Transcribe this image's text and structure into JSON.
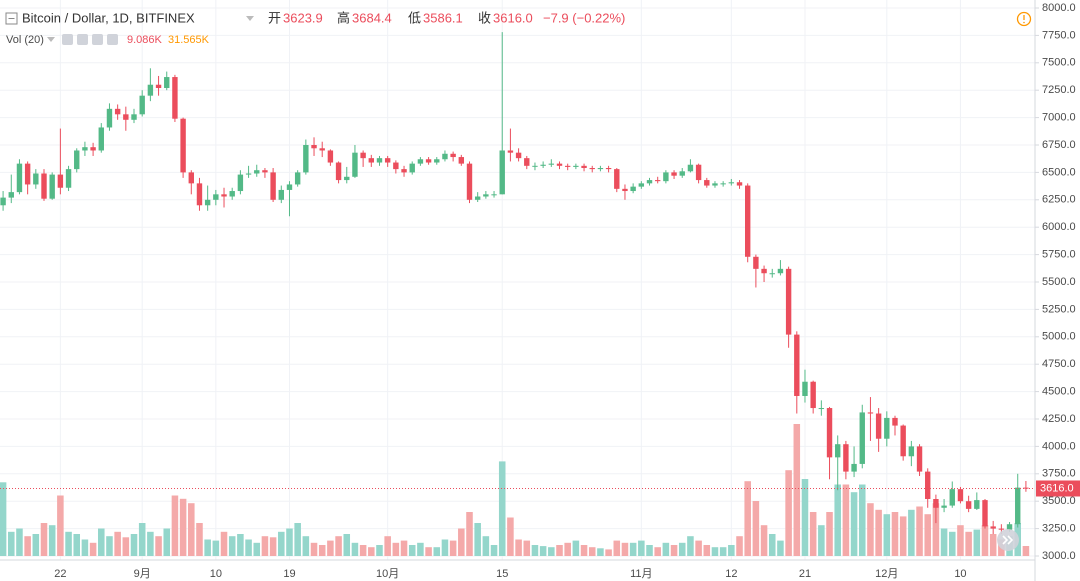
{
  "chart_data": {
    "type": "candlestick",
    "title": "Bitcoin / Dollar, 1D, BITFINEX",
    "ohlc_header": {
      "open_label": "开",
      "open": "3623.9",
      "high_label": "高",
      "high": "3684.4",
      "low_label": "低",
      "low": "3586.1",
      "close_label": "收",
      "close": "3616.0",
      "change": "−7.9 (−0.22%)"
    },
    "volume_header": {
      "label": "Vol (20)",
      "value": "9.086K",
      "ma": "31.565K"
    },
    "categories": [
      null,
      null,
      null,
      null,
      null,
      null,
      null,
      "22",
      null,
      null,
      null,
      null,
      null,
      null,
      null,
      null,
      null,
      "9月",
      null,
      null,
      null,
      null,
      null,
      null,
      null,
      null,
      "10",
      null,
      null,
      null,
      null,
      null,
      null,
      null,
      null,
      "19",
      null,
      null,
      null,
      null,
      null,
      null,
      null,
      null,
      null,
      null,
      null,
      "10月",
      null,
      null,
      null,
      null,
      null,
      null,
      null,
      null,
      null,
      null,
      null,
      null,
      null,
      "15",
      null,
      null,
      null,
      null,
      null,
      null,
      null,
      null,
      null,
      null,
      null,
      null,
      null,
      null,
      null,
      null,
      "11月",
      null,
      null,
      null,
      null,
      null,
      null,
      null,
      null,
      null,
      null,
      "12",
      null,
      null,
      null,
      null,
      null,
      null,
      null,
      null,
      "21",
      null,
      null,
      null,
      null,
      null,
      null,
      null,
      null,
      null,
      "12月",
      null,
      null,
      null,
      null,
      null,
      null,
      null,
      null,
      "10",
      null,
      null,
      null,
      null,
      null,
      null,
      null,
      null
    ],
    "open": [
      6200,
      6270,
      6320,
      6580,
      6390,
      6490,
      6260,
      6480,
      6360,
      6530,
      6700,
      6730,
      6700,
      6910,
      7080,
      7030,
      6980,
      7030,
      7200,
      7300,
      7270,
      7370,
      6990,
      6500,
      6400,
      6200,
      6250,
      6300,
      6280,
      6330,
      6480,
      6490,
      6520,
      6500,
      6250,
      6340,
      6390,
      6500,
      6750,
      6720,
      6700,
      6590,
      6430,
      6460,
      6680,
      6630,
      6590,
      6630,
      6590,
      6530,
      6500,
      6580,
      6620,
      6590,
      6620,
      6670,
      6640,
      6580,
      6250,
      6280,
      6300,
      6300,
      6700,
      6680,
      6630,
      6560,
      6560,
      6570,
      6580,
      6560,
      6550,
      6560,
      6540,
      6530,
      6540,
      6530,
      6350,
      6330,
      6370,
      6400,
      6430,
      6420,
      6500,
      6470,
      6510,
      6570,
      6430,
      6380,
      6400,
      6400,
      6410,
      6380,
      5730,
      5620,
      5580,
      5580,
      5620,
      5020,
      4460,
      4590,
      4350,
      4350,
      3900,
      4020,
      3770,
      3840,
      4310,
      4300,
      4070,
      4260,
      4190,
      3910,
      4000,
      3770,
      3520,
      3440,
      3460,
      3610,
      3500,
      3430,
      3510,
      3270,
      3250,
      3240,
      3290,
      3623.9
    ],
    "high": [
      6330,
      6480,
      6620,
      6600,
      6530,
      6530,
      6500,
      6900,
      6560,
      6720,
      6780,
      6770,
      6950,
      7130,
      7120,
      7100,
      7080,
      7250,
      7450,
      7380,
      7420,
      7390,
      7000,
      6520,
      6450,
      6380,
      6340,
      6360,
      6360,
      6520,
      6560,
      6570,
      6540,
      6540,
      6380,
      6420,
      6520,
      6800,
      6820,
      6780,
      6710,
      6600,
      6550,
      6750,
      6700,
      6660,
      6650,
      6650,
      6610,
      6560,
      6600,
      6640,
      6640,
      6640,
      6700,
      6690,
      6660,
      6600,
      6320,
      6330,
      6330,
      7780,
      6900,
      6720,
      6650,
      6590,
      6600,
      6620,
      6600,
      6580,
      6580,
      6580,
      6560,
      6560,
      6560,
      6540,
      6390,
      6400,
      6420,
      6450,
      6460,
      6520,
      6520,
      6540,
      6620,
      6580,
      6450,
      6420,
      6420,
      6440,
      6430,
      6400,
      5750,
      5650,
      5620,
      5700,
      5640,
      5050,
      4700,
      4600,
      4420,
      4360,
      4100,
      4050,
      4000,
      4380,
      4450,
      4350,
      4320,
      4280,
      4200,
      4050,
      4020,
      3800,
      3560,
      3520,
      3680,
      3630,
      3550,
      3580,
      3520,
      3320,
      3290,
      3310,
      3750,
      3684.4
    ],
    "low": [
      6150,
      6220,
      6300,
      6300,
      6350,
      6240,
      6250,
      6300,
      6330,
      6500,
      6650,
      6650,
      6680,
      6880,
      6980,
      6880,
      6950,
      7010,
      7150,
      7200,
      7250,
      6960,
      6450,
      6300,
      6150,
      6150,
      6200,
      6180,
      6250,
      6300,
      6450,
      6460,
      6450,
      6230,
      6220,
      6100,
      6370,
      6480,
      6650,
      6640,
      6560,
      6400,
      6400,
      6450,
      6550,
      6550,
      6560,
      6550,
      6490,
      6460,
      6480,
      6560,
      6570,
      6570,
      6600,
      6600,
      6560,
      6220,
      6230,
      6260,
      6270,
      6300,
      6600,
      6600,
      6530,
      6520,
      6540,
      6550,
      6530,
      6520,
      6530,
      6510,
      6500,
      6510,
      6500,
      6320,
      6250,
      6310,
      6350,
      6380,
      6400,
      6400,
      6440,
      6450,
      6500,
      6400,
      6360,
      6360,
      6370,
      6380,
      6350,
      5680,
      5450,
      5500,
      5540,
      5560,
      4900,
      4300,
      4400,
      4300,
      4280,
      3700,
      3600,
      3700,
      3720,
      3800,
      4050,
      3950,
      4000,
      4100,
      3870,
      3820,
      3730,
      3440,
      3300,
      3400,
      3440,
      3480,
      3400,
      3420,
      3250,
      3200,
      3200,
      3220,
      3260,
      3586.1
    ],
    "close": [
      6270,
      6320,
      6580,
      6390,
      6490,
      6260,
      6480,
      6360,
      6530,
      6700,
      6730,
      6700,
      6910,
      7080,
      7030,
      6980,
      7030,
      7200,
      7300,
      7270,
      7370,
      6990,
      6500,
      6400,
      6200,
      6250,
      6300,
      6280,
      6330,
      6480,
      6490,
      6520,
      6500,
      6250,
      6340,
      6390,
      6500,
      6750,
      6720,
      6700,
      6590,
      6430,
      6460,
      6680,
      6630,
      6590,
      6630,
      6590,
      6530,
      6500,
      6580,
      6620,
      6590,
      6620,
      6670,
      6640,
      6580,
      6250,
      6280,
      6300,
      6300,
      6700,
      6680,
      6630,
      6560,
      6560,
      6570,
      6580,
      6560,
      6550,
      6560,
      6540,
      6530,
      6540,
      6530,
      6350,
      6330,
      6370,
      6400,
      6430,
      6420,
      6500,
      6470,
      6510,
      6570,
      6430,
      6380,
      6400,
      6400,
      6410,
      6380,
      5730,
      5620,
      5580,
      5580,
      5620,
      5020,
      4460,
      4590,
      4350,
      4350,
      3900,
      4020,
      3770,
      3840,
      4310,
      4300,
      4070,
      4260,
      4190,
      3910,
      4000,
      3770,
      3520,
      3440,
      3460,
      3610,
      3500,
      3430,
      3510,
      3270,
      3250,
      3240,
      3290,
      3623.9,
      3616.0
    ],
    "volume": {
      "axis": "y2",
      "values": [
        67,
        22,
        25,
        18,
        20,
        30,
        28,
        55,
        22,
        20,
        15,
        12,
        25,
        18,
        22,
        17,
        20,
        30,
        22,
        18,
        25,
        55,
        52,
        48,
        30,
        15,
        14,
        22,
        18,
        20,
        15,
        12,
        18,
        17,
        22,
        25,
        30,
        18,
        12,
        10,
        14,
        18,
        20,
        12,
        10,
        8,
        10,
        18,
        12,
        14,
        10,
        12,
        8,
        8,
        15,
        14,
        25,
        40,
        30,
        18,
        10,
        86,
        35,
        15,
        14,
        10,
        9,
        8,
        10,
        12,
        14,
        10,
        8,
        7,
        6,
        14,
        12,
        12,
        14,
        10,
        8,
        12,
        10,
        12,
        18,
        14,
        10,
        8,
        8,
        10,
        18,
        68,
        50,
        28,
        20,
        14,
        78,
        120,
        70,
        40,
        28,
        40,
        65,
        65,
        58,
        65,
        48,
        42,
        38,
        40,
        36,
        42,
        45,
        38,
        48,
        25,
        22,
        28,
        22,
        24,
        28,
        20,
        15,
        18,
        30,
        9.086
      ]
    },
    "last_price": {
      "value": 3616.0,
      "label": "3616.0"
    },
    "ylim": [
      3000,
      8000
    ],
    "y2lim": [
      0,
      160
    ],
    "yticks": [
      {
        "value": 3000,
        "label": "3000.0"
      },
      {
        "value": 3250,
        "label": "3250.0"
      },
      {
        "value": 3500,
        "label": "3500.0"
      },
      {
        "value": 3750,
        "label": "3750.0"
      },
      {
        "value": 4000,
        "label": "4000.0"
      },
      {
        "value": 4250,
        "label": "4250.0"
      },
      {
        "value": 4500,
        "label": "4500.0"
      },
      {
        "value": 4750,
        "label": "4750.0"
      },
      {
        "value": 5000,
        "label": "5000.0"
      },
      {
        "value": 5250,
        "label": "5250.0"
      },
      {
        "value": 5500,
        "label": "5500.0"
      },
      {
        "value": 5750,
        "label": "5750.0"
      },
      {
        "value": 6000,
        "label": "6000.0"
      },
      {
        "value": 6250,
        "label": "6250.0"
      },
      {
        "value": 6500,
        "label": "6500.0"
      },
      {
        "value": 6750,
        "label": "6750.0"
      },
      {
        "value": 7000,
        "label": "7000.0"
      },
      {
        "value": 7250,
        "label": "7250.0"
      },
      {
        "value": 7500,
        "label": "7500.0"
      },
      {
        "value": 7750,
        "label": "7750.0"
      },
      {
        "value": 8000,
        "label": "8000.0"
      }
    ],
    "grid": true,
    "up_color": "#53b987",
    "down_color": "#eb4d5c",
    "volume_up_color": "#94d6cb",
    "volume_down_color": "#f4a9a9",
    "ma_color": "#ff9800"
  }
}
